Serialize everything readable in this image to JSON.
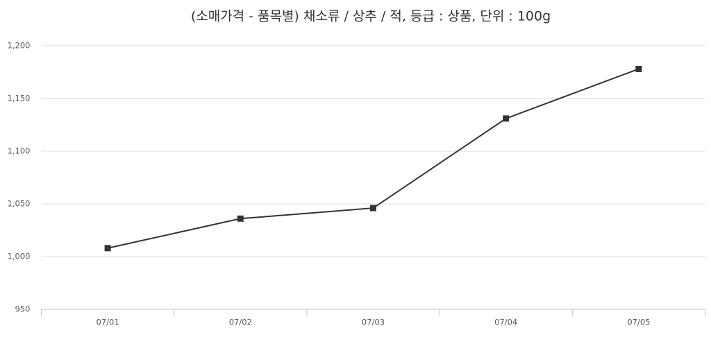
{
  "chart_data": {
    "type": "line",
    "title": "(소매가격 - 품목별) 채소류 / 상추 / 적, 등급 : 상품, 단위 : 100g",
    "categories": [
      "07/01",
      "07/02",
      "07/03",
      "07/04",
      "07/05"
    ],
    "series": [
      {
        "color": "#333333",
        "values": [
          1008,
          1036,
          1046,
          1131,
          1178
        ]
      }
    ],
    "ylim": [
      950,
      1200
    ],
    "yticks": [
      950,
      {
        "value": 1000,
        "label": "1,000"
      },
      {
        "value": 1050,
        "label": "1,050"
      },
      {
        "value": 1100,
        "label": "1,100"
      },
      {
        "value": 1150,
        "label": "1,150"
      },
      {
        "value": 1200,
        "label": "1,200"
      }
    ],
    "grid": true
  }
}
